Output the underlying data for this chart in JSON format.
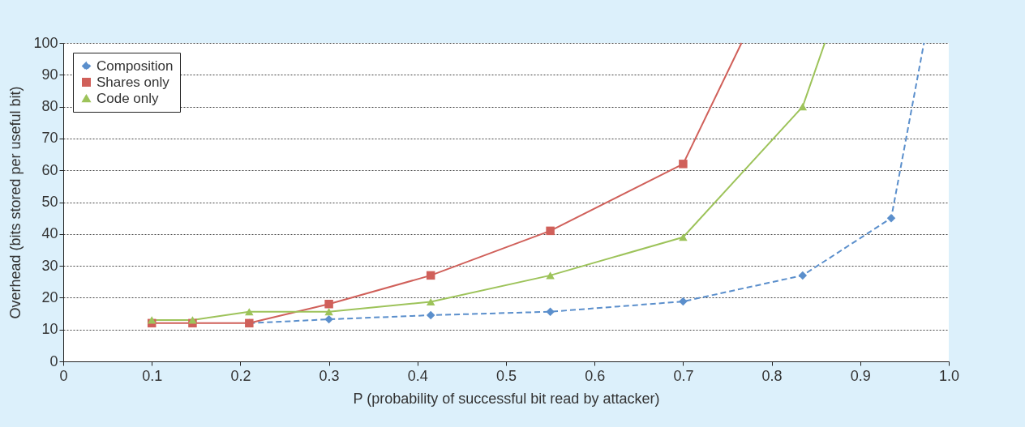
{
  "chart_data": {
    "type": "line",
    "xlabel": "P (probability of successful bit read by attacker)",
    "ylabel": "Overhead (bits stored per useful bit)",
    "xlim": [
      0,
      1
    ],
    "xticks": [
      0,
      0.1,
      0.2,
      0.3,
      0.4,
      0.5,
      0.6,
      0.7,
      0.8,
      0.9,
      {
        "value": 1,
        "label": "1.0"
      }
    ],
    "ylim": [
      0,
      100
    ],
    "yticks": [
      0,
      10,
      20,
      30,
      40,
      50,
      60,
      70,
      80,
      90,
      100
    ],
    "grid": "y",
    "legend": "top left",
    "series": [
      {
        "name": "Composition",
        "color": "#5b8fcc",
        "marker": "diamond",
        "line_style": "dashed",
        "x": [
          0.21,
          0.3,
          0.415,
          0.55,
          0.7,
          0.835,
          0.935,
          0.972
        ],
        "values": [
          12,
          13.2,
          14.5,
          15.6,
          18.8,
          27,
          45,
          100
        ]
      },
      {
        "name": "Shares only",
        "color": "#d0605a",
        "marker": "square",
        "line_style": "solid",
        "x": [
          0.1,
          0.146,
          0.21,
          0.3,
          0.415,
          0.55,
          0.7,
          0.766
        ],
        "values": [
          12,
          12,
          12,
          18,
          27,
          41,
          62,
          100
        ]
      },
      {
        "name": "Code only",
        "color": "#9dc35a",
        "marker": "triangle",
        "line_style": "solid",
        "x": [
          0.1,
          0.146,
          0.21,
          0.3,
          0.415,
          0.55,
          0.7,
          0.835,
          0.86
        ],
        "values": [
          13,
          13,
          15.6,
          15.6,
          18.7,
          27,
          39,
          80,
          100
        ]
      }
    ]
  }
}
